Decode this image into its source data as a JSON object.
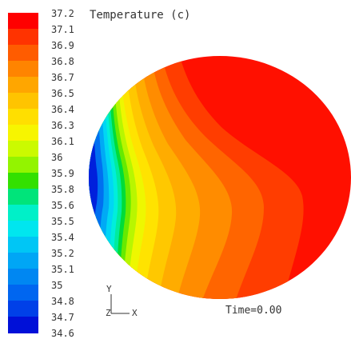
{
  "chart_data": {
    "type": "heatmap",
    "title": "Temperature (c)",
    "colorbar": {
      "labels": [
        "37.2",
        "37.1",
        "36.9",
        "36.8",
        "36.7",
        "36.5",
        "36.4",
        "36.3",
        "36.1",
        "36",
        "35.9",
        "35.8",
        "35.6",
        "35.5",
        "35.4",
        "35.2",
        "35.1",
        "35",
        "34.8",
        "34.7",
        "34.6"
      ],
      "colors": [
        "#ff0000",
        "#ff3300",
        "#ff5c00",
        "#ff8400",
        "#ffa600",
        "#ffc400",
        "#ffdf00",
        "#f7f500",
        "#cbfa00",
        "#93f400",
        "#33e000",
        "#00e47a",
        "#00f0c8",
        "#00e6ef",
        "#00c6f5",
        "#00a6f5",
        "#0087f2",
        "#0066f0",
        "#0040e8",
        "#0010d8"
      ],
      "min": 34.6,
      "max": 37.2
    },
    "axes_indicator": {
      "y": "Y",
      "z": "Z",
      "x": "X"
    },
    "time_label": "Time=0.00"
  }
}
